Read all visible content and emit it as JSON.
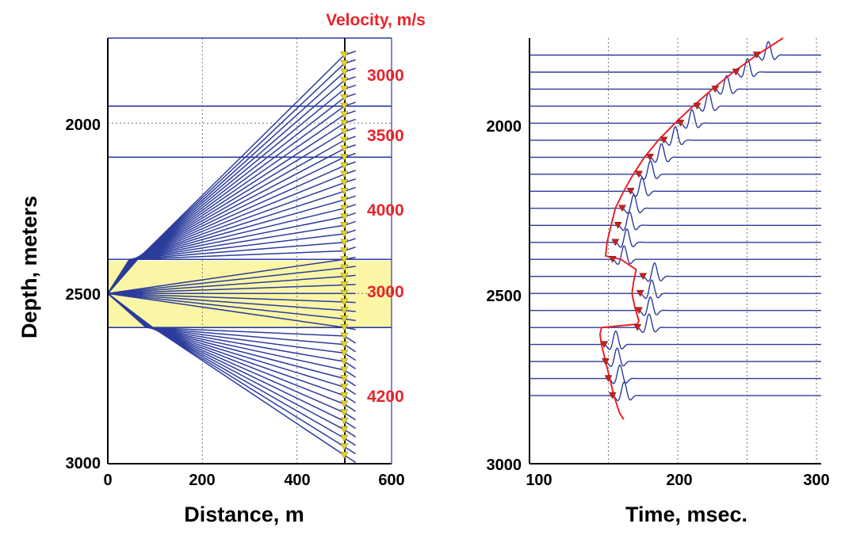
{
  "colors": {
    "ray": "#2b3c9c",
    "layer_line": "#2b3c9c",
    "trace": "#2b3c9c",
    "velocity_text": "#e8232a",
    "first_break_curve": "#e8232a",
    "pick_marker": "#c8221c",
    "receiver_marker": "#e5d52b",
    "low_velocity_layer": "#fbf6a6"
  },
  "chart_data": [
    {
      "type": "line",
      "panel": "raypath-model",
      "xlabel": "Distance, m",
      "ylabel": "Depth, meters",
      "velocity_header": "Velocity, m/s",
      "xlim": [
        0,
        600
      ],
      "ylim": [
        3000,
        1750
      ],
      "xticks": [
        0,
        200,
        400,
        600
      ],
      "yticks": [
        2000,
        2500,
        3000
      ],
      "grid": "dotted",
      "source": {
        "x": 0,
        "depth": 2500
      },
      "well_x": 500,
      "layer_boundaries": [
        1750,
        1950,
        2100,
        2400,
        2600
      ],
      "low_velocity_layer": [
        2400,
        2600
      ],
      "layers": [
        {
          "top": 1750,
          "bottom": 1950,
          "velocity": "3000"
        },
        {
          "top": 1950,
          "bottom": 2100,
          "velocity": "3500"
        },
        {
          "top": 2100,
          "bottom": 2400,
          "velocity": "4000"
        },
        {
          "top": 2400,
          "bottom": 2600,
          "velocity": "3000"
        },
        {
          "top": 2600,
          "bottom": 3000,
          "velocity": "4200"
        }
      ],
      "receiver_depths": [
        1800,
        1825,
        1850,
        1875,
        1900,
        1925,
        1950,
        1975,
        2000,
        2025,
        2050,
        2075,
        2100,
        2125,
        2150,
        2175,
        2200,
        2225,
        2250,
        2275,
        2300,
        2325,
        2350,
        2375,
        2400,
        2425,
        2450,
        2475,
        2500,
        2525,
        2550,
        2575,
        2600,
        2625,
        2650,
        2675,
        2700,
        2725,
        2750,
        2775,
        2800,
        2825,
        2850,
        2875,
        2900,
        2925,
        2950,
        2975
      ],
      "ray_end_depths": [
        1805,
        1830,
        1855,
        1880,
        1905,
        1930,
        1955,
        1980,
        2005,
        2030,
        2055,
        2080,
        2105,
        2130,
        2155,
        2180,
        2205,
        2230,
        2255,
        2280,
        2305,
        2330,
        2355,
        2380,
        2405,
        2430,
        2455,
        2480,
        2505,
        2530,
        2555,
        2580,
        2605,
        2630,
        2655,
        2680,
        2705,
        2730,
        2755,
        2780,
        2805,
        2830,
        2855,
        2880,
        2905,
        2930,
        2955,
        2980
      ]
    },
    {
      "type": "line",
      "panel": "synthetic-vsp",
      "xlabel": "Time, msec.",
      "ylabel": "",
      "xlim": [
        100,
        300
      ],
      "ylim": [
        3000,
        1750
      ],
      "xticks": [
        100,
        200,
        300
      ],
      "yticks": [
        2000,
        2500,
        3000
      ],
      "grid": "dotted",
      "trace_depths": [
        1800,
        1850,
        1900,
        1950,
        2000,
        2050,
        2100,
        2150,
        2200,
        2250,
        2300,
        2350,
        2400,
        2450,
        2500,
        2550,
        2600,
        2650,
        2700,
        2750,
        2800
      ],
      "first_break_times_ms": [
        257,
        242,
        227,
        214,
        202,
        190,
        180,
        172,
        166,
        160,
        157,
        155,
        153,
        175,
        173,
        172,
        171,
        147,
        148,
        150,
        153
      ],
      "first_break_curve": {
        "depth": [
          1750,
          1800,
          1850,
          1900,
          1950,
          2000,
          2050,
          2100,
          2150,
          2200,
          2250,
          2300,
          2350,
          2390,
          2400,
          2430,
          2470,
          2500,
          2540,
          2580,
          2590,
          2600,
          2620,
          2650,
          2700,
          2750,
          2800,
          2850,
          2870
        ],
        "time_ms": [
          276,
          257,
          240,
          225,
          211,
          198,
          186,
          176,
          168,
          161,
          155,
          152,
          149,
          148,
          159,
          170,
          168,
          167,
          169,
          172,
          171,
          145,
          144,
          145,
          148,
          151,
          154,
          158,
          161
        ]
      }
    }
  ],
  "labels": {
    "left": {
      "xlabel": "Distance, m",
      "ylabel": "Depth, meters",
      "velocity_header": "Velocity, m/s",
      "xticks": [
        "0",
        "200",
        "400",
        "600"
      ],
      "yticks": [
        "2000",
        "2500",
        "3000"
      ],
      "velocities": [
        "3000",
        "3500",
        "4000",
        "3000",
        "4200"
      ]
    },
    "right": {
      "xlabel": "Time, msec.",
      "xticks": [
        "100",
        "200",
        "300"
      ],
      "yticks": [
        "2000",
        "2500",
        "3000"
      ]
    }
  }
}
